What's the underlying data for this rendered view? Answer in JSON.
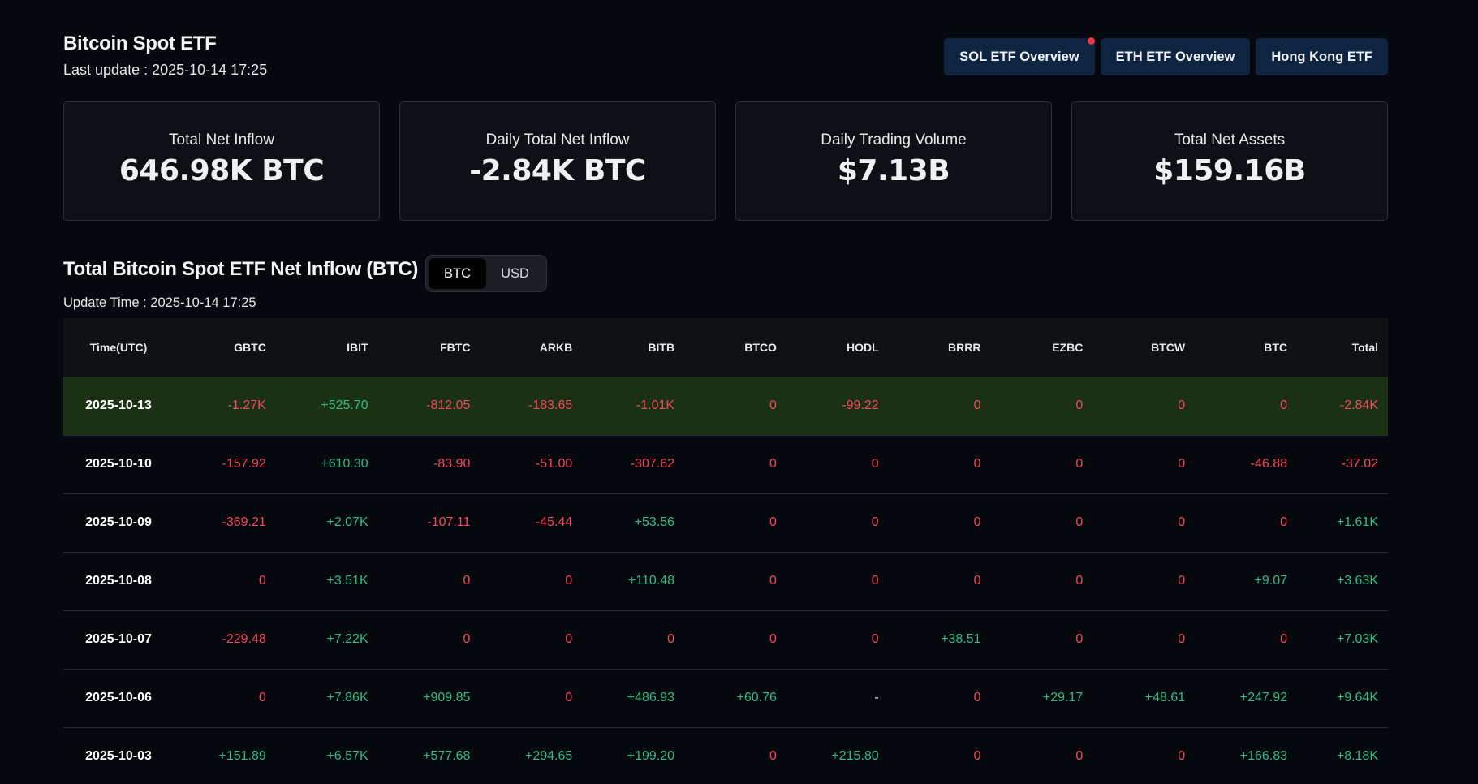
{
  "header": {
    "title": "Bitcoin Spot ETF",
    "last_update": "Last update : 2025-10-14 17:25",
    "nav_buttons": [
      {
        "label": "SOL ETF Overview",
        "has_dot": true
      },
      {
        "label": "ETH ETF Overview",
        "has_dot": false
      },
      {
        "label": "Hong Kong ETF",
        "has_dot": false
      }
    ]
  },
  "cards": [
    {
      "label": "Total Net Inflow",
      "value": "646.98K BTC"
    },
    {
      "label": "Daily Total Net Inflow",
      "value": "-2.84K BTC"
    },
    {
      "label": "Daily Trading Volume",
      "value": "$7.13B"
    },
    {
      "label": "Total Net Assets",
      "value": "$159.16B"
    }
  ],
  "section": {
    "title": "Total Bitcoin Spot ETF Net Inflow (BTC)",
    "toggle": {
      "options": [
        "BTC",
        "USD"
      ],
      "selected": "BTC"
    },
    "update_time": "Update Time : 2025-10-14 17:25"
  },
  "table": {
    "columns": [
      "Time(UTC)",
      "GBTC",
      "IBIT",
      "FBTC",
      "ARKB",
      "BITB",
      "BTCO",
      "HODL",
      "BRRR",
      "EZBC",
      "BTCW",
      "BTC",
      "Total"
    ],
    "rows": [
      {
        "highlight": true,
        "cells": [
          "2025-10-13",
          "-1.27K",
          "+525.70",
          "-812.05",
          "-183.65",
          "-1.01K",
          "0",
          "-99.22",
          "0",
          "0",
          "0",
          "0",
          "-2.84K"
        ]
      },
      {
        "highlight": false,
        "cells": [
          "2025-10-10",
          "-157.92",
          "+610.30",
          "-83.90",
          "-51.00",
          "-307.62",
          "0",
          "0",
          "0",
          "0",
          "0",
          "-46.88",
          "-37.02"
        ]
      },
      {
        "highlight": false,
        "cells": [
          "2025-10-09",
          "-369.21",
          "+2.07K",
          "-107.11",
          "-45.44",
          "+53.56",
          "0",
          "0",
          "0",
          "0",
          "0",
          "0",
          "+1.61K"
        ]
      },
      {
        "highlight": false,
        "cells": [
          "2025-10-08",
          "0",
          "+3.51K",
          "0",
          "0",
          "+110.48",
          "0",
          "0",
          "0",
          "0",
          "0",
          "+9.07",
          "+3.63K"
        ]
      },
      {
        "highlight": false,
        "cells": [
          "2025-10-07",
          "-229.48",
          "+7.22K",
          "0",
          "0",
          "0",
          "0",
          "0",
          "+38.51",
          "0",
          "0",
          "0",
          "+7.03K"
        ]
      },
      {
        "highlight": false,
        "cells": [
          "2025-10-06",
          "0",
          "+7.86K",
          "+909.85",
          "0",
          "+486.93",
          "+60.76",
          "-",
          "0",
          "+29.17",
          "+48.61",
          "+247.92",
          "+9.64K"
        ]
      },
      {
        "highlight": false,
        "cells": [
          "2025-10-03",
          "+151.89",
          "+6.57K",
          "+577.68",
          "+294.65",
          "+199.20",
          "0",
          "+215.80",
          "0",
          "0",
          "0",
          "+166.83",
          "+8.18K"
        ]
      }
    ]
  },
  "colors": {
    "positive": "#2ebd85",
    "negative": "#f6465d",
    "highlight_row": "#1a3114",
    "nav_button_bg": "#0e2440"
  }
}
